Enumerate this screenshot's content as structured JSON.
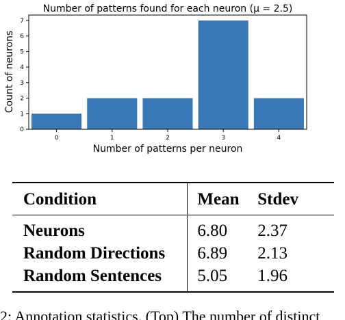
{
  "chart_data": {
    "type": "bar",
    "title": "Number of patterns found for each neuron (μ = 2.5)",
    "xlabel": "Number of patterns per neuron",
    "ylabel": "Count of neurons",
    "categories": [
      "0",
      "1",
      "2",
      "3",
      "4"
    ],
    "values": [
      1,
      2,
      2,
      7,
      2
    ],
    "ylim": [
      0,
      7.35
    ],
    "yticks": [
      "0",
      "1",
      "2",
      "3",
      "4",
      "5",
      "6",
      "7"
    ],
    "bar_color": "#3a78b5",
    "grid": false,
    "legend": "none"
  },
  "table": {
    "headers": [
      "Condition",
      "Mean",
      "Stdev"
    ],
    "rows": [
      {
        "condition": "Neurons",
        "mean": "6.80",
        "stdev": "2.37"
      },
      {
        "condition": "Random Directions",
        "mean": "6.89",
        "stdev": "2.13"
      },
      {
        "condition": "Random Sentences",
        "mean": "5.05",
        "stdev": "1.96"
      }
    ]
  },
  "caption": "2: Annotation statistics. (Top) The number of distinct"
}
